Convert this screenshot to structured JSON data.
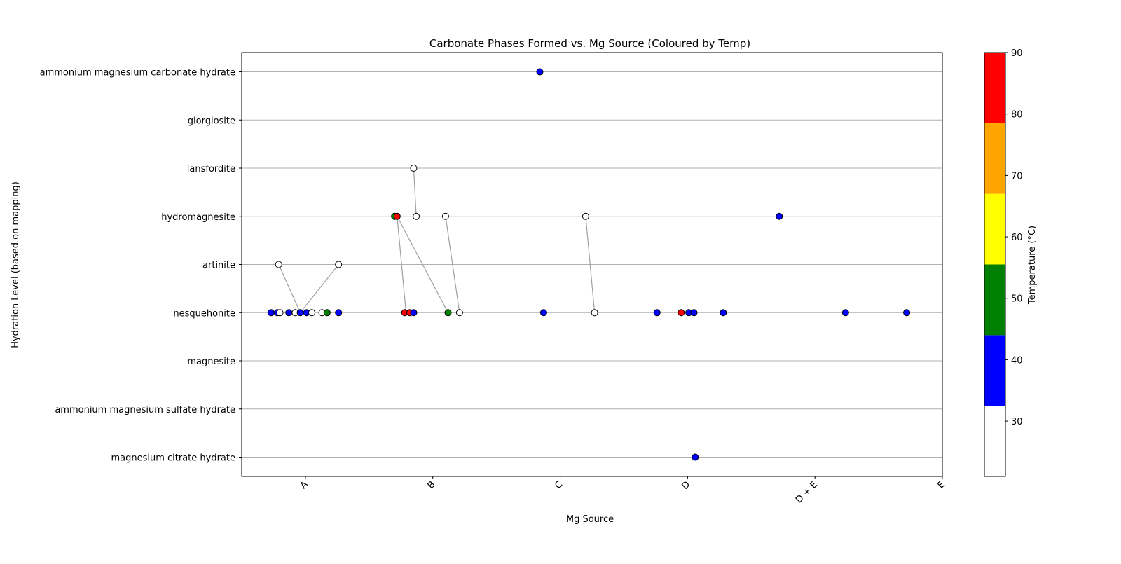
{
  "chart_data": {
    "type": "scatter",
    "title": "Carbonate Phases Formed vs. Mg Source (Coloured by Temp)",
    "xlabel": "Mg Source",
    "ylabel": "Hydration Level (based on mapping)",
    "x_categories": [
      "A",
      "B",
      "C",
      "D",
      "D + E",
      "E"
    ],
    "xlim": [
      -0.5,
      5
    ],
    "y_categories": [
      "magnesium citrate hydrate",
      "ammonium magnesium sulfate hydrate",
      "magnesite",
      "nesquehonite",
      "artinite",
      "hydromagnesite",
      "lansfordite",
      "giorgiosite",
      "ammonium magnesium carbonate hydrate"
    ],
    "ylim": [
      -0.4,
      8.4
    ],
    "grid": "horizontal",
    "colorbar": {
      "label": "Temperature (°C)",
      "range": [
        21,
        90
      ],
      "bands": [
        {
          "from": 21,
          "to": 32.5,
          "color": "#ffffff"
        },
        {
          "from": 32.5,
          "to": 44,
          "color": "#0000ff"
        },
        {
          "from": 44,
          "to": 55.5,
          "color": "#008000"
        },
        {
          "from": 55.5,
          "to": 67,
          "color": "#ffff00"
        },
        {
          "from": 67,
          "to": 78.5,
          "color": "#ffa500"
        },
        {
          "from": 78.5,
          "to": 90,
          "color": "#ff0000"
        }
      ],
      "ticks": [
        "30",
        "40",
        "50",
        "60",
        "70",
        "80",
        "90"
      ],
      "tick_values": [
        30,
        40,
        50,
        60,
        70,
        80,
        90
      ]
    },
    "points": [
      {
        "x": -0.27,
        "y": 3,
        "temp": 40
      },
      {
        "x": -0.22,
        "y": 3,
        "temp": 40
      },
      {
        "x": -0.2,
        "y": 3,
        "temp": 25
      },
      {
        "x": -0.13,
        "y": 3,
        "temp": 40
      },
      {
        "x": -0.08,
        "y": 3,
        "temp": 25
      },
      {
        "x": -0.04,
        "y": 3,
        "temp": 40
      },
      {
        "x": 0.01,
        "y": 3,
        "temp": 40
      },
      {
        "x": 0.05,
        "y": 3,
        "temp": 25
      },
      {
        "x": 0.13,
        "y": 3,
        "temp": 25
      },
      {
        "x": 0.17,
        "y": 3,
        "temp": 50
      },
      {
        "x": 0.26,
        "y": 3,
        "temp": 40
      },
      {
        "x": 0.78,
        "y": 3,
        "temp": 85
      },
      {
        "x": 0.82,
        "y": 3,
        "temp": 85
      },
      {
        "x": 0.85,
        "y": 3,
        "temp": 40
      },
      {
        "x": 1.12,
        "y": 3,
        "temp": 50
      },
      {
        "x": 1.21,
        "y": 3,
        "temp": 25
      },
      {
        "x": 1.87,
        "y": 3,
        "temp": 40
      },
      {
        "x": 2.27,
        "y": 3,
        "temp": 25
      },
      {
        "x": 2.76,
        "y": 3,
        "temp": 40
      },
      {
        "x": 2.95,
        "y": 3,
        "temp": 85
      },
      {
        "x": 3.01,
        "y": 3,
        "temp": 40
      },
      {
        "x": 3.05,
        "y": 3,
        "temp": 40
      },
      {
        "x": 3.28,
        "y": 3,
        "temp": 40
      },
      {
        "x": 4.24,
        "y": 3,
        "temp": 40
      },
      {
        "x": 4.72,
        "y": 3,
        "temp": 40
      },
      {
        "x": -0.21,
        "y": 4,
        "temp": 25
      },
      {
        "x": 0.26,
        "y": 4,
        "temp": 25
      },
      {
        "x": 0.7,
        "y": 5,
        "temp": 50
      },
      {
        "x": 0.72,
        "y": 5,
        "temp": 85
      },
      {
        "x": 0.87,
        "y": 5,
        "temp": 25
      },
      {
        "x": 1.1,
        "y": 5,
        "temp": 25
      },
      {
        "x": 2.2,
        "y": 5,
        "temp": 25
      },
      {
        "x": 3.72,
        "y": 5,
        "temp": 40
      },
      {
        "x": 0.85,
        "y": 6,
        "temp": 25
      },
      {
        "x": 1.84,
        "y": 8,
        "temp": 40
      },
      {
        "x": 3.06,
        "y": 0,
        "temp": 40
      }
    ],
    "connectors": [
      {
        "from": [
          -0.21,
          4
        ],
        "to": [
          -0.04,
          3
        ]
      },
      {
        "from": [
          0.26,
          4
        ],
        "to": [
          -0.04,
          3
        ]
      },
      {
        "from": [
          0.85,
          6
        ],
        "to": [
          0.87,
          5
        ]
      },
      {
        "from": [
          0.72,
          5
        ],
        "to": [
          0.79,
          3
        ]
      },
      {
        "from": [
          0.72,
          5
        ],
        "to": [
          1.12,
          3
        ]
      },
      {
        "from": [
          1.1,
          5
        ],
        "to": [
          1.21,
          3
        ]
      },
      {
        "from": [
          2.2,
          5
        ],
        "to": [
          2.27,
          3
        ]
      }
    ]
  }
}
